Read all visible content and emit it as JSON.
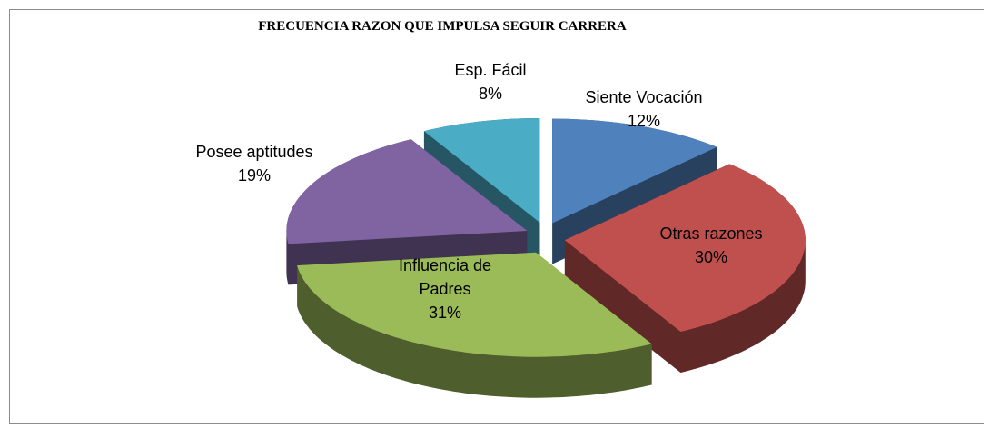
{
  "chart_data": {
    "type": "pie3d",
    "title": "FRECUENCIA RAZON QUE IMPULSA SEGUIR CARRERA",
    "categories": [
      "Siente Vocación",
      "Otras razones",
      "Influencia de Padres",
      "Posee aptitudes",
      "Esp. Fácil"
    ],
    "values": [
      12,
      30,
      31,
      19,
      8
    ],
    "value_labels": [
      "12%",
      "30%",
      "31%",
      "19%",
      "8%"
    ],
    "colors": [
      "#4f81bd",
      "#c0504d",
      "#9bbb59",
      "#8064a2",
      "#4bacc6"
    ]
  }
}
